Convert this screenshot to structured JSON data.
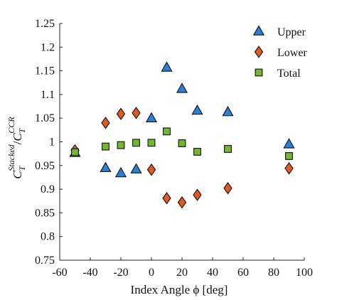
{
  "chart_data": {
    "type": "scatter",
    "xlabel": "Index Angle ϕ [deg]",
    "ylabel": {
      "base": "C",
      "sub1": "T",
      "sup1": "Stacked",
      "slash": "/",
      "base2": "C",
      "sub2": "T",
      "sup2": "CCR"
    },
    "xlim": [
      -60,
      100
    ],
    "ylim": [
      0.75,
      1.25
    ],
    "x_ticks": [
      "-60",
      "-40",
      "-20",
      "0",
      "20",
      "40",
      "60",
      "80",
      "100"
    ],
    "y_ticks": [
      "0.75",
      "0.8",
      "0.85",
      "0.9",
      "0.95",
      "1",
      "1.05",
      "1.1",
      "1.15",
      "1.2",
      "1.25"
    ],
    "grid": false,
    "legend_position": "top-right",
    "series": [
      {
        "name": "Upper",
        "marker": "triangle",
        "color": "#2a7fd6",
        "points": [
          [
            -50,
            0.977
          ],
          [
            -30,
            0.945
          ],
          [
            -20,
            0.934
          ],
          [
            -10,
            0.942
          ],
          [
            0,
            1.05
          ],
          [
            10,
            1.157
          ],
          [
            20,
            1.112
          ],
          [
            30,
            1.066
          ],
          [
            50,
            1.063
          ],
          [
            90,
            0.995
          ]
        ]
      },
      {
        "name": "Lower",
        "marker": "diamond",
        "color": "#e05a1e",
        "points": [
          [
            -50,
            0.982
          ],
          [
            -30,
            1.04
          ],
          [
            -20,
            1.059
          ],
          [
            -10,
            1.061
          ],
          [
            0,
            0.941
          ],
          [
            10,
            0.881
          ],
          [
            20,
            0.872
          ],
          [
            30,
            0.888
          ],
          [
            50,
            0.902
          ],
          [
            90,
            0.944
          ]
        ]
      },
      {
        "name": "Total",
        "marker": "square",
        "color": "#74b72e",
        "points": [
          [
            -50,
            0.978
          ],
          [
            -30,
            0.99
          ],
          [
            -20,
            0.993
          ],
          [
            -10,
            0.998
          ],
          [
            0,
            0.998
          ],
          [
            10,
            1.022
          ],
          [
            20,
            0.997
          ],
          [
            30,
            0.979
          ],
          [
            50,
            0.985
          ],
          [
            90,
            0.97
          ]
        ]
      }
    ]
  }
}
